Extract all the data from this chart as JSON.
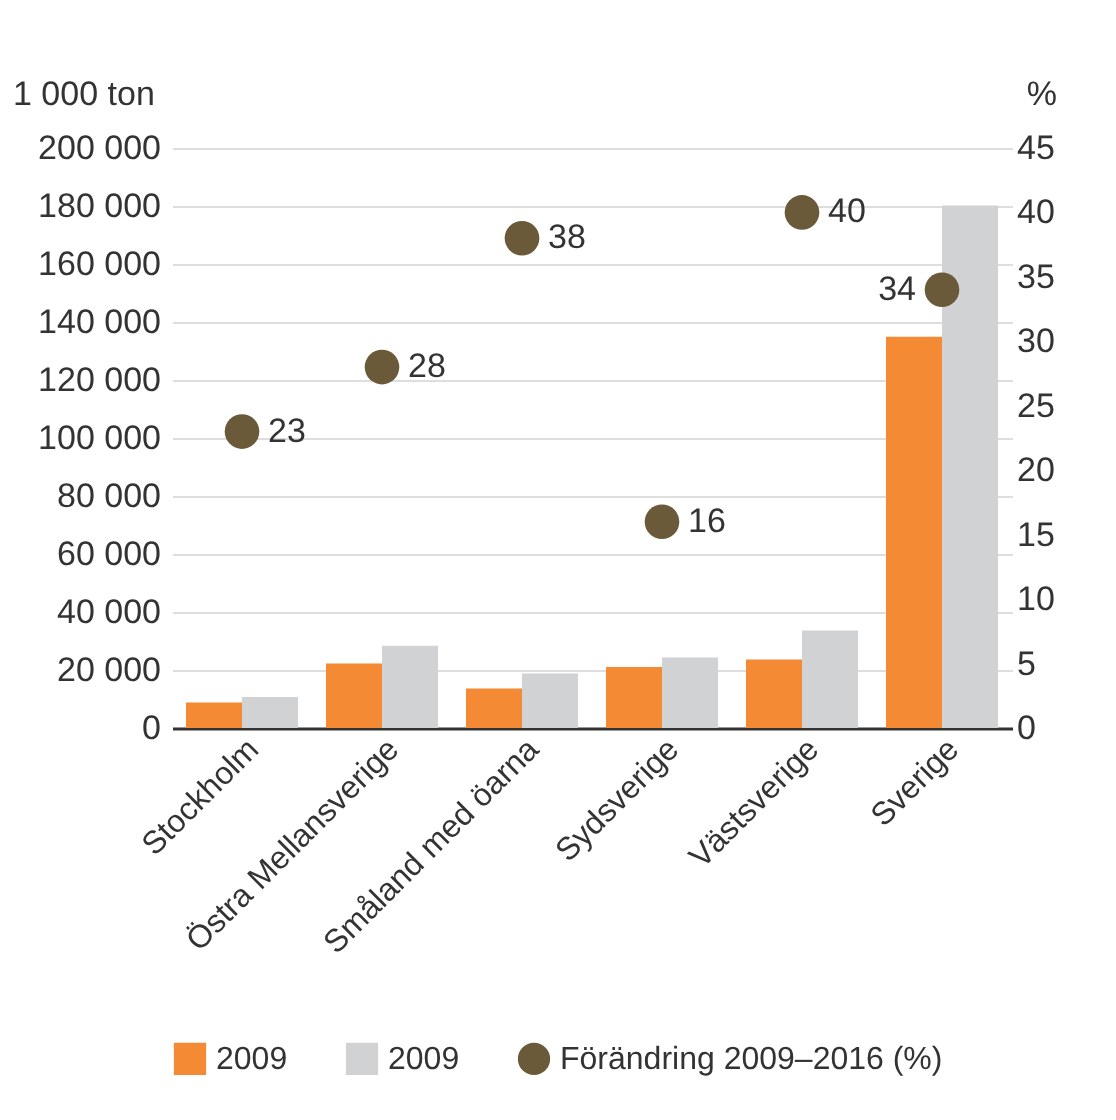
{
  "chart_data": {
    "type": "bar",
    "ylabel": "1 000 ton",
    "y2label": "%",
    "categories": [
      "Stockholm",
      "Östra Mellansverige",
      "Småland med öarna",
      "Sydsverige",
      "Västsverige",
      "Sverige"
    ],
    "series": [
      {
        "name": "2009",
        "color": "#f58a35",
        "values": [
          8800,
          22200,
          13600,
          21000,
          23600,
          134900
        ]
      },
      {
        "name": "2009",
        "color": "#d1d2d4",
        "values": [
          10700,
          28400,
          18800,
          24300,
          33600,
          180200
        ]
      },
      {
        "name": "Förändring 2009–2016 (%)",
        "type": "scatter",
        "axis": "y2",
        "color": "#6b5a3a",
        "values": [
          23,
          28,
          38,
          16,
          40,
          34
        ],
        "value_labels": [
          "23",
          "28",
          "38",
          "16",
          "40",
          "34"
        ]
      }
    ],
    "ylim": [
      0,
      200000
    ],
    "yticks": [
      {
        "value": 0,
        "label": "0"
      },
      {
        "value": 20000,
        "label": "20 000"
      },
      {
        "value": 40000,
        "label": "40 000"
      },
      {
        "value": 60000,
        "label": "60 000"
      },
      {
        "value": 80000,
        "label": "80 000"
      },
      {
        "value": 100000,
        "label": "100 000"
      },
      {
        "value": 120000,
        "label": "120 000"
      },
      {
        "value": 140000,
        "label": "140 000"
      },
      {
        "value": 160000,
        "label": "160 000"
      },
      {
        "value": 180000,
        "label": "180 000"
      },
      {
        "value": 200000,
        "label": "200 000"
      }
    ],
    "y2lim": [
      0,
      45
    ],
    "y2ticks": [
      0,
      5,
      10,
      15,
      20,
      25,
      30,
      35,
      40,
      45
    ],
    "grid": "y",
    "legend": "bottom",
    "marker": "circle"
  }
}
